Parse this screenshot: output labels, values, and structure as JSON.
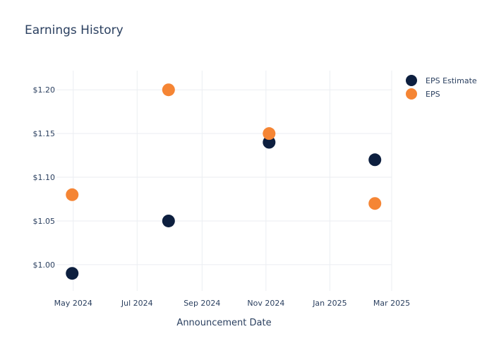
{
  "chart_data": {
    "type": "scatter",
    "title": "Earnings History",
    "xlabel": "Announcement Date",
    "ylabel": "",
    "x": [
      "2024-04-30",
      "2024-07-31",
      "2024-11-04",
      "2025-02-13"
    ],
    "x_range": [
      "2024-04-15",
      "2025-03-01"
    ],
    "x_ticks": [
      {
        "date": "2024-05-01",
        "label": "May 2024"
      },
      {
        "date": "2024-07-01",
        "label": "Jul 2024"
      },
      {
        "date": "2024-09-01",
        "label": "Sep 2024"
      },
      {
        "date": "2024-11-01",
        "label": "Nov 2024"
      },
      {
        "date": "2025-01-01",
        "label": "Jan 2025"
      },
      {
        "date": "2025-03-01",
        "label": "Mar 2025"
      }
    ],
    "ylim": [
      0.97,
      1.222
    ],
    "y_ticks": [
      {
        "value": 1.0,
        "label": "$1.00"
      },
      {
        "value": 1.05,
        "label": "$1.05"
      },
      {
        "value": 1.1,
        "label": "$1.10"
      },
      {
        "value": 1.15,
        "label": "$1.15"
      },
      {
        "value": 1.2,
        "label": "$1.20"
      }
    ],
    "series": [
      {
        "name": "EPS Estimate",
        "color": "#0d1f3f",
        "values": [
          0.99,
          1.05,
          1.14,
          1.12
        ]
      },
      {
        "name": "EPS",
        "color": "#f58534",
        "values": [
          1.08,
          1.2,
          1.15,
          1.07
        ]
      }
    ],
    "grid": true,
    "legend_position": "top-right"
  }
}
